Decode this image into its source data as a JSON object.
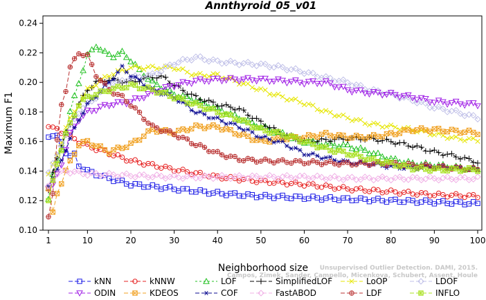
{
  "chart_data": {
    "type": "line",
    "title": "Annthyroid_05_v01",
    "xlabel": "Neighborhood size",
    "ylabel": "Maximum F1",
    "xlim": [
      1,
      100
    ],
    "ylim": [
      0.1,
      0.245
    ],
    "xticks": [
      1,
      10,
      20,
      30,
      40,
      50,
      60,
      70,
      80,
      90,
      100
    ],
    "yticks": [
      0.1,
      0.12,
      0.14,
      0.16,
      0.18,
      0.2,
      0.22,
      0.24
    ],
    "ytick_labels": [
      "0.10",
      "0.12",
      "0.14",
      "0.16",
      "0.18",
      "0.20",
      "0.22",
      "0.24"
    ],
    "grid": false,
    "legend_position": "bottom",
    "credit": [
      "Campos, Zimek, Sander, Campello, Micenkova, Schubert, Assent, Houle",
      "Unsupervised Outlier Detection. DAMI, 2015."
    ],
    "series": [
      {
        "name": "kNN",
        "color": "#1a1ae6",
        "marker": "square",
        "dash": "6,3",
        "knots": [
          [
            1,
            0.163
          ],
          [
            2,
            0.164
          ],
          [
            3,
            0.163
          ],
          [
            4,
            0.16
          ],
          [
            5,
            0.153
          ],
          [
            6,
            0.15
          ],
          [
            7,
            0.151
          ],
          [
            8,
            0.144
          ],
          [
            10,
            0.14
          ],
          [
            15,
            0.135
          ],
          [
            20,
            0.131
          ],
          [
            30,
            0.128
          ],
          [
            40,
            0.125
          ],
          [
            50,
            0.123
          ],
          [
            60,
            0.122
          ],
          [
            70,
            0.121
          ],
          [
            80,
            0.12
          ],
          [
            90,
            0.119
          ],
          [
            100,
            0.118
          ]
        ]
      },
      {
        "name": "kNNW",
        "color": "#e62020",
        "marker": "circle",
        "dash": "6,3",
        "knots": [
          [
            1,
            0.17
          ],
          [
            2,
            0.169
          ],
          [
            3,
            0.168
          ],
          [
            5,
            0.165
          ],
          [
            8,
            0.16
          ],
          [
            10,
            0.157
          ],
          [
            15,
            0.152
          ],
          [
            20,
            0.147
          ],
          [
            30,
            0.141
          ],
          [
            40,
            0.136
          ],
          [
            50,
            0.133
          ],
          [
            60,
            0.131
          ],
          [
            70,
            0.128
          ],
          [
            80,
            0.126
          ],
          [
            90,
            0.124
          ],
          [
            100,
            0.123
          ]
        ]
      },
      {
        "name": "LOF",
        "color": "#20c020",
        "marker": "triangle-up",
        "dash": "3,3",
        "knots": [
          [
            1,
            0.121
          ],
          [
            2,
            0.138
          ],
          [
            4,
            0.155
          ],
          [
            6,
            0.18
          ],
          [
            8,
            0.2
          ],
          [
            10,
            0.218
          ],
          [
            12,
            0.225
          ],
          [
            14,
            0.22
          ],
          [
            16,
            0.218
          ],
          [
            18,
            0.22
          ],
          [
            20,
            0.215
          ],
          [
            22,
            0.208
          ],
          [
            25,
            0.2
          ],
          [
            30,
            0.192
          ],
          [
            35,
            0.188
          ],
          [
            40,
            0.182
          ],
          [
            45,
            0.176
          ],
          [
            50,
            0.17
          ],
          [
            55,
            0.165
          ],
          [
            60,
            0.16
          ],
          [
            65,
            0.158
          ],
          [
            70,
            0.157
          ],
          [
            75,
            0.153
          ],
          [
            80,
            0.148
          ],
          [
            85,
            0.145
          ],
          [
            90,
            0.144
          ],
          [
            100,
            0.141
          ]
        ]
      },
      {
        "name": "SimplifiedLOF",
        "color": "#000000",
        "marker": "plus",
        "dash": "6,3",
        "knots": [
          [
            1,
            0.127
          ],
          [
            3,
            0.15
          ],
          [
            5,
            0.165
          ],
          [
            8,
            0.185
          ],
          [
            10,
            0.195
          ],
          [
            12,
            0.2
          ],
          [
            15,
            0.202
          ],
          [
            20,
            0.2
          ],
          [
            25,
            0.204
          ],
          [
            28,
            0.203
          ],
          [
            30,
            0.198
          ],
          [
            35,
            0.19
          ],
          [
            40,
            0.185
          ],
          [
            45,
            0.182
          ],
          [
            50,
            0.173
          ],
          [
            55,
            0.165
          ],
          [
            60,
            0.16
          ],
          [
            65,
            0.161
          ],
          [
            70,
            0.162
          ],
          [
            75,
            0.162
          ],
          [
            80,
            0.16
          ],
          [
            85,
            0.157
          ],
          [
            90,
            0.153
          ],
          [
            95,
            0.15
          ],
          [
            100,
            0.146
          ]
        ]
      },
      {
        "name": "LoOP",
        "color": "#e6e600",
        "marker": "x",
        "dash": "6,3",
        "knots": [
          [
            1,
            0.138
          ],
          [
            3,
            0.15
          ],
          [
            5,
            0.17
          ],
          [
            8,
            0.185
          ],
          [
            10,
            0.195
          ],
          [
            15,
            0.205
          ],
          [
            20,
            0.21
          ],
          [
            25,
            0.21
          ],
          [
            30,
            0.21
          ],
          [
            35,
            0.205
          ],
          [
            40,
            0.205
          ],
          [
            45,
            0.2
          ],
          [
            50,
            0.195
          ],
          [
            55,
            0.19
          ],
          [
            60,
            0.186
          ],
          [
            65,
            0.18
          ],
          [
            70,
            0.176
          ],
          [
            75,
            0.172
          ],
          [
            80,
            0.17
          ],
          [
            85,
            0.168
          ],
          [
            90,
            0.165
          ],
          [
            95,
            0.162
          ],
          [
            100,
            0.161
          ]
        ]
      },
      {
        "name": "LDOF",
        "color": "#c0c0e8",
        "marker": "diamond",
        "dash": "6,3",
        "knots": [
          [
            1,
            0.139
          ],
          [
            3,
            0.15
          ],
          [
            5,
            0.165
          ],
          [
            8,
            0.18
          ],
          [
            10,
            0.185
          ],
          [
            15,
            0.198
          ],
          [
            20,
            0.203
          ],
          [
            25,
            0.205
          ],
          [
            30,
            0.213
          ],
          [
            35,
            0.217
          ],
          [
            40,
            0.214
          ],
          [
            45,
            0.213
          ],
          [
            50,
            0.212
          ],
          [
            55,
            0.21
          ],
          [
            60,
            0.207
          ],
          [
            65,
            0.203
          ],
          [
            70,
            0.2
          ],
          [
            75,
            0.195
          ],
          [
            80,
            0.192
          ],
          [
            85,
            0.188
          ],
          [
            90,
            0.183
          ],
          [
            95,
            0.18
          ],
          [
            100,
            0.176
          ]
        ]
      },
      {
        "name": "ODIN",
        "color": "#a020e6",
        "marker": "triangle-down",
        "dash": "6,3",
        "knots": [
          [
            1,
            0.128
          ],
          [
            2,
            0.13
          ],
          [
            4,
            0.145
          ],
          [
            6,
            0.165
          ],
          [
            8,
            0.175
          ],
          [
            10,
            0.18
          ],
          [
            15,
            0.185
          ],
          [
            20,
            0.187
          ],
          [
            25,
            0.193
          ],
          [
            30,
            0.198
          ],
          [
            35,
            0.201
          ],
          [
            40,
            0.202
          ],
          [
            50,
            0.202
          ],
          [
            60,
            0.2
          ],
          [
            65,
            0.2
          ],
          [
            70,
            0.195
          ],
          [
            75,
            0.193
          ],
          [
            80,
            0.192
          ],
          [
            85,
            0.19
          ],
          [
            90,
            0.187
          ],
          [
            95,
            0.186
          ],
          [
            100,
            0.185
          ]
        ]
      },
      {
        "name": "KDEOS",
        "color": "#f0a020",
        "marker": "square-x",
        "dash": "6,3",
        "knots": [
          [
            1,
            0.128
          ],
          [
            2,
            0.111
          ],
          [
            3,
            0.125
          ],
          [
            5,
            0.14
          ],
          [
            8,
            0.158
          ],
          [
            10,
            0.16
          ],
          [
            15,
            0.153
          ],
          [
            20,
            0.158
          ],
          [
            25,
            0.168
          ],
          [
            30,
            0.166
          ],
          [
            35,
            0.17
          ],
          [
            40,
            0.17
          ],
          [
            45,
            0.165
          ],
          [
            50,
            0.16
          ],
          [
            55,
            0.162
          ],
          [
            60,
            0.163
          ],
          [
            65,
            0.165
          ],
          [
            70,
            0.163
          ],
          [
            75,
            0.163
          ],
          [
            80,
            0.165
          ],
          [
            85,
            0.168
          ],
          [
            90,
            0.168
          ],
          [
            95,
            0.167
          ],
          [
            100,
            0.166
          ]
        ]
      },
      {
        "name": "COF",
        "color": "#0a0a90",
        "marker": "asterisk",
        "dash": "6,3",
        "knots": [
          [
            1,
            0.13
          ],
          [
            3,
            0.14
          ],
          [
            5,
            0.155
          ],
          [
            8,
            0.175
          ],
          [
            10,
            0.185
          ],
          [
            15,
            0.2
          ],
          [
            18,
            0.21
          ],
          [
            20,
            0.205
          ],
          [
            25,
            0.195
          ],
          [
            30,
            0.19
          ],
          [
            35,
            0.18
          ],
          [
            40,
            0.175
          ],
          [
            45,
            0.17
          ],
          [
            50,
            0.163
          ],
          [
            55,
            0.159
          ],
          [
            60,
            0.152
          ],
          [
            65,
            0.149
          ],
          [
            70,
            0.146
          ],
          [
            75,
            0.145
          ],
          [
            80,
            0.143
          ],
          [
            85,
            0.142
          ],
          [
            90,
            0.143
          ],
          [
            100,
            0.141
          ]
        ]
      },
      {
        "name": "FastABOD",
        "color": "#f0b0e6",
        "marker": "diamond",
        "dash": "6,3",
        "knots": [
          [
            1,
            0.13
          ],
          [
            3,
            0.138
          ],
          [
            5,
            0.14
          ],
          [
            8,
            0.139
          ],
          [
            10,
            0.138
          ],
          [
            20,
            0.137
          ],
          [
            30,
            0.136
          ],
          [
            40,
            0.136
          ],
          [
            50,
            0.136
          ],
          [
            60,
            0.136
          ],
          [
            70,
            0.135
          ],
          [
            80,
            0.135
          ],
          [
            90,
            0.135
          ],
          [
            100,
            0.135
          ]
        ]
      },
      {
        "name": "LDF",
        "color": "#b83030",
        "marker": "circle-plus",
        "dash": "6,3",
        "knots": [
          [
            1,
            0.109
          ],
          [
            2,
            0.125
          ],
          [
            3,
            0.16
          ],
          [
            4,
            0.185
          ],
          [
            5,
            0.195
          ],
          [
            6,
            0.21
          ],
          [
            8,
            0.22
          ],
          [
            10,
            0.218
          ],
          [
            12,
            0.205
          ],
          [
            15,
            0.195
          ],
          [
            18,
            0.19
          ],
          [
            20,
            0.185
          ],
          [
            25,
            0.17
          ],
          [
            30,
            0.165
          ],
          [
            35,
            0.158
          ],
          [
            40,
            0.152
          ],
          [
            45,
            0.148
          ],
          [
            50,
            0.147
          ],
          [
            60,
            0.146
          ],
          [
            70,
            0.145
          ],
          [
            80,
            0.145
          ],
          [
            90,
            0.143
          ],
          [
            100,
            0.141
          ]
        ]
      },
      {
        "name": "INFLO",
        "color": "#a8e020",
        "marker": "square-star",
        "dash": "6,3",
        "knots": [
          [
            1,
            0.12
          ],
          [
            3,
            0.145
          ],
          [
            5,
            0.165
          ],
          [
            8,
            0.185
          ],
          [
            10,
            0.19
          ],
          [
            15,
            0.195
          ],
          [
            20,
            0.198
          ],
          [
            25,
            0.195
          ],
          [
            30,
            0.19
          ],
          [
            35,
            0.185
          ],
          [
            40,
            0.18
          ],
          [
            45,
            0.175
          ],
          [
            50,
            0.168
          ],
          [
            55,
            0.165
          ],
          [
            60,
            0.16
          ],
          [
            65,
            0.155
          ],
          [
            70,
            0.152
          ],
          [
            75,
            0.148
          ],
          [
            80,
            0.145
          ],
          [
            85,
            0.142
          ],
          [
            90,
            0.141
          ],
          [
            100,
            0.141
          ]
        ]
      }
    ]
  }
}
